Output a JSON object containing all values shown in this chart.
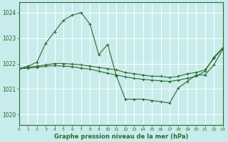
{
  "title": "Graphe pression niveau de la mer (hPa)",
  "bg_color": "#c8ecec",
  "line_color": "#2d6a2d",
  "xlim": [
    0,
    23
  ],
  "ylim": [
    1019.6,
    1024.4
  ],
  "yticks": [
    1020,
    1021,
    1022,
    1023,
    1024
  ],
  "xticks": [
    0,
    1,
    2,
    3,
    4,
    5,
    6,
    7,
    8,
    9,
    10,
    11,
    12,
    13,
    14,
    15,
    16,
    17,
    18,
    19,
    20,
    21,
    22,
    23
  ],
  "series": [
    {
      "x": [
        0,
        1,
        2,
        3,
        4,
        5,
        6,
        7,
        8,
        9,
        10,
        11,
        12,
        13,
        14,
        15,
        16,
        17,
        18,
        19,
        20,
        21,
        22,
        23
      ],
      "y": [
        1021.8,
        1021.9,
        1022.05,
        1022.8,
        1023.25,
        1023.7,
        1023.9,
        1024.0,
        1023.55,
        1022.35,
        1022.75,
        1021.5,
        1020.6,
        1020.6,
        1020.6,
        1020.55,
        1020.5,
        1020.45,
        1021.05,
        1021.3,
        1021.55,
        1021.55,
        1021.95,
        1022.55
      ]
    },
    {
      "x": [
        0,
        1,
        2,
        3,
        4,
        5,
        6,
        7,
        8,
        9,
        10,
        11,
        12,
        13,
        14,
        15,
        16,
        17,
        18,
        19,
        20,
        21,
        22,
        23
      ],
      "y": [
        1021.8,
        1021.85,
        1021.9,
        1021.95,
        1022.0,
        1022.0,
        1021.98,
        1021.95,
        1021.9,
        1021.85,
        1021.8,
        1021.75,
        1021.65,
        1021.6,
        1021.55,
        1021.5,
        1021.5,
        1021.45,
        1021.5,
        1021.6,
        1021.65,
        1021.75,
        1022.2,
        1022.6
      ]
    },
    {
      "x": [
        0,
        1,
        2,
        3,
        4,
        5,
        6,
        7,
        8,
        9,
        10,
        11,
        12,
        13,
        14,
        15,
        16,
        17,
        18,
        19,
        20,
        21,
        22,
        23
      ],
      "y": [
        1021.8,
        1021.82,
        1021.85,
        1021.9,
        1021.92,
        1021.9,
        1021.88,
        1021.82,
        1021.78,
        1021.7,
        1021.62,
        1021.55,
        1021.48,
        1021.42,
        1021.38,
        1021.35,
        1021.32,
        1021.3,
        1021.35,
        1021.42,
        1021.5,
        1021.7,
        1022.25,
        1022.62
      ]
    }
  ]
}
